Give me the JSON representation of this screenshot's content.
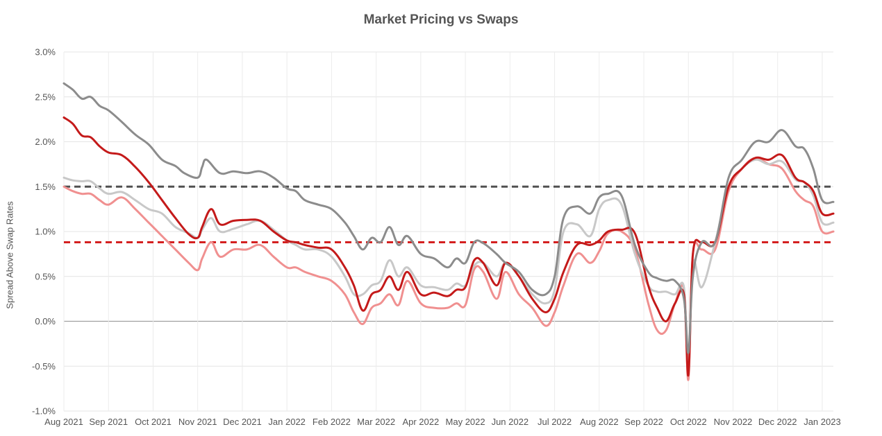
{
  "chart_data": {
    "type": "line",
    "title": "Market Pricing vs Swaps",
    "xlabel": "",
    "ylabel": "Spread Above Swap Rates",
    "ylim": [
      -1.0,
      3.0
    ],
    "ytick_values": [
      -1.0,
      -0.5,
      0.0,
      0.5,
      1.0,
      1.5,
      2.0,
      2.5,
      3.0
    ],
    "ytick_labels": [
      "-1.0%",
      "-0.5%",
      "0.0%",
      "0.5%",
      "1.0%",
      "1.5%",
      "2.0%",
      "2.5%",
      "3.0%"
    ],
    "x_domain": [
      0,
      17.25
    ],
    "xtick_values": [
      0,
      1,
      2,
      3,
      4,
      5,
      6,
      7,
      8,
      9,
      10,
      11,
      12,
      13,
      14,
      15,
      16,
      17
    ],
    "xtick_labels": [
      "Aug 2021",
      "Sep 2021",
      "Oct 2021",
      "Nov 2021",
      "Dec 2021",
      "Jan 2022",
      "Feb 2022",
      "Mar 2022",
      "Apr 2022",
      "May 2022",
      "Jun 2022",
      "Jul 2022",
      "Aug 2022",
      "Sep 2022",
      "Oct 2022",
      "Nov 2022",
      "Dec 2022",
      "Jan 2023"
    ],
    "grid": true,
    "legend": "none",
    "reference_lines": [
      {
        "y": 1.5,
        "color": "#505050",
        "style": "dashed"
      },
      {
        "y": 0.88,
        "color": "#d42020",
        "style": "dashed"
      }
    ],
    "series": [
      {
        "color": "#8c8c8c",
        "x": [
          0.0,
          0.2,
          0.4,
          0.6,
          0.8,
          1.0,
          1.3,
          1.6,
          1.9,
          2.2,
          2.5,
          2.7,
          3.0,
          3.1,
          3.2,
          3.5,
          3.8,
          4.1,
          4.4,
          4.7,
          5.0,
          5.2,
          5.4,
          5.7,
          6.0,
          6.3,
          6.5,
          6.7,
          6.9,
          7.1,
          7.3,
          7.5,
          7.7,
          8.0,
          8.3,
          8.6,
          8.8,
          9.0,
          9.2,
          9.4,
          9.7,
          9.9,
          10.2,
          10.5,
          10.8,
          11.0,
          11.2,
          11.5,
          11.8,
          12.0,
          12.2,
          12.5,
          12.8,
          13.1,
          13.3,
          13.5,
          13.7,
          13.9,
          14.0,
          14.1,
          14.3,
          14.6,
          14.9,
          15.2,
          15.5,
          15.8,
          16.1,
          16.4,
          16.6,
          16.8,
          17.0,
          17.25
        ],
        "values": [
          2.65,
          2.58,
          2.48,
          2.5,
          2.4,
          2.35,
          2.22,
          2.08,
          1.97,
          1.8,
          1.73,
          1.65,
          1.6,
          1.72,
          1.8,
          1.65,
          1.67,
          1.65,
          1.67,
          1.6,
          1.48,
          1.45,
          1.35,
          1.3,
          1.25,
          1.1,
          0.95,
          0.8,
          0.93,
          0.88,
          1.05,
          0.85,
          0.95,
          0.75,
          0.7,
          0.6,
          0.7,
          0.65,
          0.88,
          0.87,
          0.75,
          0.65,
          0.55,
          0.35,
          0.3,
          0.5,
          1.15,
          1.28,
          1.2,
          1.38,
          1.42,
          1.4,
          0.85,
          0.55,
          0.48,
          0.45,
          0.45,
          0.25,
          -0.35,
          0.5,
          0.88,
          0.88,
          1.6,
          1.8,
          2.0,
          2.0,
          2.13,
          1.95,
          1.92,
          1.7,
          1.35,
          1.33
        ]
      },
      {
        "color": "#c41a1a",
        "x": [
          0.0,
          0.2,
          0.4,
          0.6,
          0.8,
          1.0,
          1.3,
          1.6,
          1.9,
          2.2,
          2.5,
          2.8,
          3.0,
          3.1,
          3.3,
          3.5,
          3.8,
          4.1,
          4.4,
          4.7,
          5.0,
          5.2,
          5.4,
          5.7,
          6.0,
          6.3,
          6.5,
          6.7,
          6.9,
          7.1,
          7.3,
          7.5,
          7.7,
          8.0,
          8.3,
          8.6,
          8.8,
          9.0,
          9.2,
          9.4,
          9.7,
          9.9,
          10.2,
          10.5,
          10.8,
          11.0,
          11.2,
          11.5,
          11.8,
          12.0,
          12.2,
          12.5,
          12.8,
          13.1,
          13.3,
          13.5,
          13.7,
          13.9,
          14.0,
          14.1,
          14.3,
          14.6,
          14.9,
          15.2,
          15.5,
          15.8,
          16.1,
          16.4,
          16.6,
          16.8,
          17.0,
          17.25
        ],
        "values": [
          2.27,
          2.2,
          2.07,
          2.05,
          1.95,
          1.88,
          1.85,
          1.72,
          1.55,
          1.35,
          1.15,
          0.97,
          0.93,
          1.05,
          1.25,
          1.08,
          1.12,
          1.13,
          1.12,
          1.0,
          0.9,
          0.88,
          0.85,
          0.82,
          0.8,
          0.6,
          0.4,
          0.12,
          0.3,
          0.35,
          0.5,
          0.35,
          0.55,
          0.3,
          0.32,
          0.28,
          0.35,
          0.38,
          0.68,
          0.65,
          0.4,
          0.65,
          0.5,
          0.25,
          0.1,
          0.25,
          0.55,
          0.85,
          0.85,
          0.9,
          1.0,
          1.02,
          0.98,
          0.4,
          0.15,
          0.0,
          0.2,
          0.3,
          -0.6,
          0.75,
          0.88,
          0.88,
          1.5,
          1.7,
          1.82,
          1.8,
          1.85,
          1.6,
          1.55,
          1.45,
          1.2,
          1.2
        ]
      },
      {
        "color": "#c8c8c8",
        "x": [
          0.0,
          0.2,
          0.4,
          0.6,
          0.8,
          1.0,
          1.3,
          1.6,
          1.9,
          2.2,
          2.5,
          2.8,
          3.0,
          3.1,
          3.3,
          3.5,
          3.8,
          4.1,
          4.4,
          4.7,
          5.0,
          5.2,
          5.4,
          5.7,
          6.0,
          6.3,
          6.5,
          6.7,
          6.9,
          7.1,
          7.3,
          7.5,
          7.7,
          8.0,
          8.3,
          8.6,
          8.8,
          9.0,
          9.2,
          9.4,
          9.7,
          9.9,
          10.2,
          10.5,
          10.8,
          11.0,
          11.2,
          11.5,
          11.8,
          12.0,
          12.2,
          12.5,
          12.8,
          13.1,
          13.3,
          13.5,
          13.7,
          13.9,
          14.0,
          14.1,
          14.3,
          14.6,
          14.9,
          15.2,
          15.5,
          15.8,
          16.1,
          16.4,
          16.6,
          16.8,
          17.0,
          17.25
        ],
        "values": [
          1.6,
          1.57,
          1.56,
          1.56,
          1.48,
          1.42,
          1.44,
          1.35,
          1.25,
          1.2,
          1.05,
          0.98,
          0.93,
          1.02,
          1.15,
          1.0,
          1.03,
          1.08,
          1.12,
          1.02,
          0.9,
          0.85,
          0.8,
          0.8,
          0.72,
          0.5,
          0.3,
          0.3,
          0.4,
          0.45,
          0.68,
          0.5,
          0.6,
          0.4,
          0.38,
          0.35,
          0.42,
          0.4,
          0.62,
          0.65,
          0.5,
          0.65,
          0.5,
          0.3,
          0.2,
          0.35,
          1.0,
          1.08,
          0.95,
          1.25,
          1.35,
          1.3,
          0.75,
          0.4,
          0.33,
          0.33,
          0.3,
          0.38,
          -0.5,
          0.65,
          0.38,
          0.88,
          1.5,
          1.7,
          1.8,
          1.75,
          1.78,
          1.58,
          1.55,
          1.4,
          1.1,
          1.1
        ]
      },
      {
        "color": "#f09090",
        "x": [
          0.0,
          0.2,
          0.4,
          0.6,
          0.8,
          1.0,
          1.3,
          1.6,
          1.9,
          2.2,
          2.5,
          2.8,
          3.0,
          3.1,
          3.3,
          3.5,
          3.8,
          4.1,
          4.4,
          4.7,
          5.0,
          5.2,
          5.4,
          5.7,
          6.0,
          6.3,
          6.5,
          6.7,
          6.9,
          7.1,
          7.3,
          7.5,
          7.7,
          8.0,
          8.3,
          8.6,
          8.8,
          9.0,
          9.2,
          9.4,
          9.7,
          9.9,
          10.2,
          10.5,
          10.8,
          11.0,
          11.2,
          11.5,
          11.8,
          12.0,
          12.2,
          12.5,
          12.8,
          13.1,
          13.3,
          13.5,
          13.7,
          13.9,
          14.0,
          14.1,
          14.3,
          14.6,
          14.9,
          15.2,
          15.5,
          15.8,
          16.1,
          16.4,
          16.6,
          16.8,
          17.0,
          17.25
        ],
        "values": [
          1.5,
          1.45,
          1.42,
          1.42,
          1.35,
          1.3,
          1.38,
          1.25,
          1.1,
          0.95,
          0.8,
          0.65,
          0.57,
          0.7,
          0.88,
          0.72,
          0.8,
          0.8,
          0.85,
          0.72,
          0.6,
          0.6,
          0.55,
          0.5,
          0.45,
          0.3,
          0.1,
          -0.03,
          0.15,
          0.2,
          0.3,
          0.18,
          0.45,
          0.2,
          0.15,
          0.15,
          0.2,
          0.18,
          0.58,
          0.55,
          0.25,
          0.55,
          0.3,
          0.15,
          -0.05,
          0.1,
          0.4,
          0.75,
          0.65,
          0.78,
          0.98,
          1.0,
          0.8,
          0.2,
          -0.1,
          -0.1,
          0.2,
          0.35,
          -0.65,
          0.75,
          0.8,
          0.8,
          1.45,
          1.7,
          1.82,
          1.75,
          1.7,
          1.45,
          1.35,
          1.28,
          1.0,
          1.0
        ]
      }
    ]
  }
}
